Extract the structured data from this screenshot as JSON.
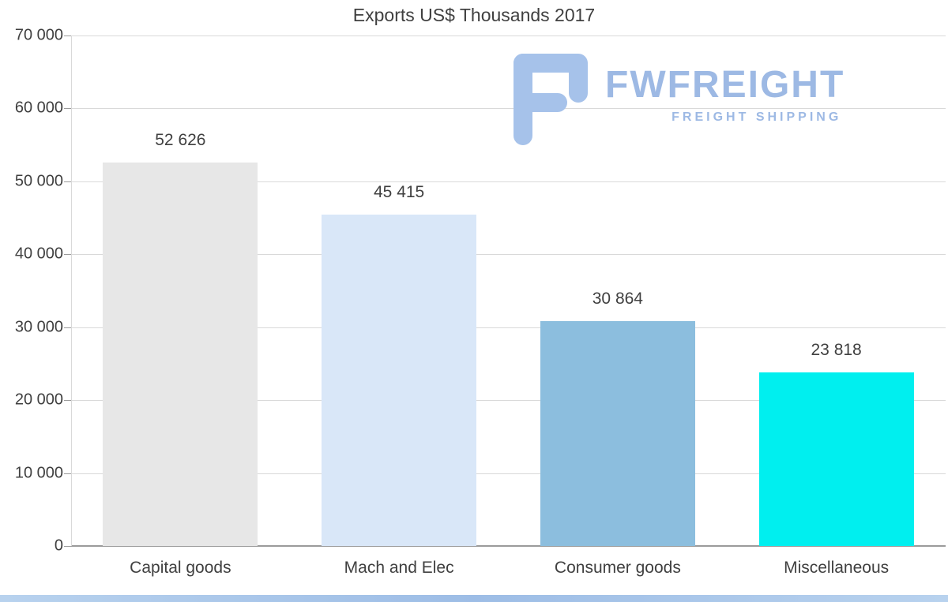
{
  "chart_data": {
    "type": "bar",
    "title": "Exports US$ Thousands 2017",
    "categories": [
      "Capital goods",
      "Mach and Elec",
      "Consumer goods",
      "Miscellaneous"
    ],
    "values": [
      52626,
      45415,
      30864,
      23818
    ],
    "value_labels": [
      "52 626",
      "45 415",
      "30 864",
      "23 818"
    ],
    "bar_colors": [
      "#e7e7e7",
      "#d9e7f8",
      "#8cbede",
      "#00efef"
    ],
    "ylim": [
      0,
      70000
    ],
    "ytick_interval": 10000,
    "ytick_labels": [
      "0",
      "10 000",
      "20 000",
      "30 000",
      "40 000",
      "50 000",
      "60 000",
      "70 000"
    ],
    "xlabel": "",
    "ylabel": "",
    "grid": true,
    "legend": "none"
  },
  "logo": {
    "brand": "FWFREIGHT",
    "tagline": "FREIGHT SHIPPING",
    "color": "#9db9e4"
  },
  "colors": {
    "background": "#ffffff",
    "gridline": "#d9d9d9",
    "axis_text": "#404040",
    "footer_strip": "#a9c4e8"
  }
}
